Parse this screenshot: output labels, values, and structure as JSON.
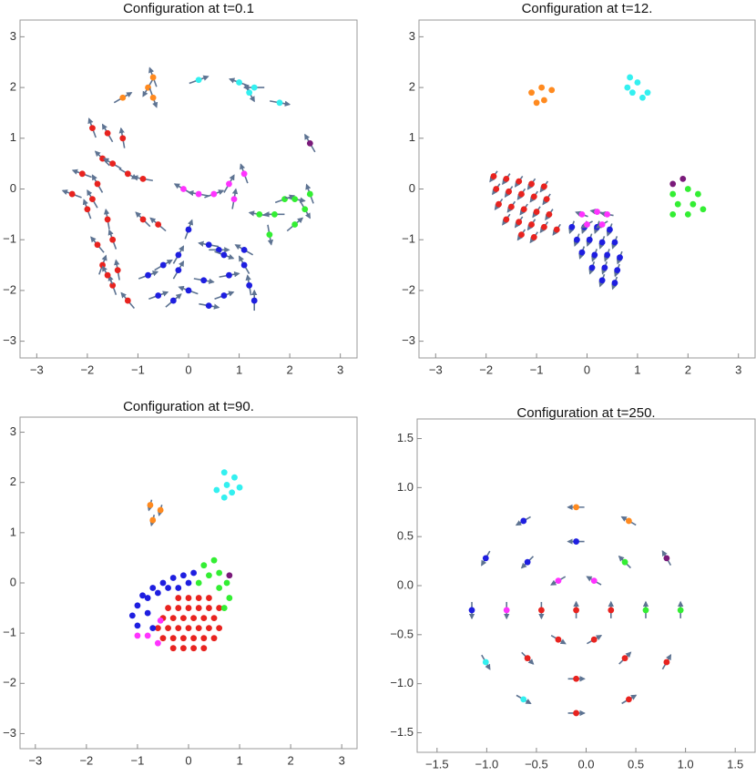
{
  "chart_data": [
    {
      "type": "scatter",
      "title": "Configuration at  t=0.1",
      "xlim": [
        -3.33,
        3.33
      ],
      "ylim": [
        -3.33,
        3.33
      ],
      "xticks": [
        {
          "value": -3,
          "label": "−3"
        },
        {
          "value": -2,
          "label": "−2"
        },
        {
          "value": -1,
          "label": "−1"
        },
        0,
        1,
        2,
        3
      ],
      "yticks": [
        {
          "value": -3,
          "label": "−3"
        },
        {
          "value": -2,
          "label": "−2"
        },
        {
          "value": -1,
          "label": "−1"
        },
        0,
        1,
        2,
        3
      ],
      "series": [
        {
          "color": "#e8231f",
          "x": [
            -1.9,
            -1.6,
            -1.3,
            -1.7,
            -1.5,
            -2.1,
            -1.8,
            -1.2,
            -0.9,
            -2.3,
            -1.9,
            -2.0,
            -1.6,
            -0.9,
            -0.6,
            -1.8,
            -1.5,
            -1.7,
            -1.4,
            -1.5,
            -1.2,
            -1.6
          ],
          "y": [
            1.2,
            1.1,
            1.0,
            0.6,
            0.5,
            0.3,
            0.1,
            0.3,
            0.2,
            -0.1,
            -0.2,
            -0.4,
            -0.6,
            -0.6,
            -0.7,
            -1.1,
            -1.0,
            -1.5,
            -1.6,
            -1.9,
            -2.2,
            -1.7
          ],
          "heading": [
            110,
            120,
            100,
            135,
            150,
            160,
            120,
            -30,
            170,
            160,
            120,
            110,
            100,
            135,
            140,
            130,
            110,
            70,
            100,
            110,
            130,
            120
          ]
        },
        {
          "color": "#1e1ee0",
          "x": [
            0.0,
            -0.2,
            -0.5,
            -0.8,
            0.4,
            0.6,
            0.7,
            1.1,
            0.8,
            0.3,
            0.0,
            -0.3,
            -0.6,
            0.4,
            0.7,
            1.1,
            1.2,
            1.3,
            -0.2
          ],
          "y": [
            -0.8,
            -1.3,
            -1.5,
            -1.7,
            -1.1,
            -1.2,
            -1.3,
            -1.2,
            -1.7,
            -1.8,
            -2.0,
            -2.2,
            -2.1,
            -2.3,
            -2.1,
            -1.5,
            -1.9,
            -2.2,
            -1.6
          ],
          "heading": [
            70,
            60,
            30,
            20,
            170,
            0,
            -20,
            150,
            10,
            -10,
            160,
            40,
            20,
            -10,
            20,
            120,
            100,
            90,
            60
          ]
        },
        {
          "color": "#ff33ff",
          "x": [
            -0.1,
            0.2,
            0.5,
            0.8,
            1.1,
            0.9
          ],
          "y": [
            0.0,
            -0.1,
            -0.1,
            0.1,
            0.3,
            -0.2
          ],
          "heading": [
            150,
            170,
            20,
            60,
            110,
            80
          ]
        },
        {
          "color": "#33ee33",
          "x": [
            1.4,
            1.7,
            1.9,
            2.1,
            2.3,
            2.4,
            1.6,
            2.1
          ],
          "y": [
            -0.5,
            -0.5,
            -0.2,
            -0.2,
            -0.4,
            -0.1,
            -0.9,
            -0.7
          ],
          "heading": [
            170,
            180,
            20,
            -10,
            -60,
            110,
            -80,
            40
          ]
        },
        {
          "color": "#33f0f0",
          "x": [
            0.2,
            1.0,
            1.2,
            1.3,
            1.8
          ],
          "y": [
            2.15,
            2.1,
            1.9,
            2.0,
            1.7
          ],
          "heading": [
            20,
            160,
            -60,
            180,
            -10
          ]
        },
        {
          "color": "#ff8a1f",
          "x": [
            -1.3,
            -0.8,
            -0.7,
            -0.7
          ],
          "y": [
            1.8,
            2.0,
            1.8,
            2.2
          ],
          "heading": [
            30,
            -120,
            -70,
            110
          ]
        },
        {
          "color": "#7a1a7a",
          "x": [
            2.4
          ],
          "y": [
            0.9
          ],
          "heading": [
            120
          ]
        }
      ]
    },
    {
      "type": "scatter",
      "title": "Configuration at  t=12.",
      "xlim": [
        -3.33,
        3.33
      ],
      "ylim": [
        -3.33,
        3.33
      ],
      "xticks": [
        {
          "value": -3,
          "label": "−3"
        },
        {
          "value": -2,
          "label": "−2"
        },
        {
          "value": -1,
          "label": "−1"
        },
        0,
        1,
        2,
        3
      ],
      "yticks": [
        {
          "value": -3,
          "label": "−3"
        },
        {
          "value": -2,
          "label": "−2"
        },
        {
          "value": -1,
          "label": "−1"
        },
        0,
        1,
        2,
        3
      ],
      "series": [
        {
          "color": "#e8231f",
          "x": [
            -1.85,
            -1.6,
            -1.35,
            -1.1,
            -0.85,
            -1.8,
            -1.55,
            -1.3,
            -1.05,
            -0.8,
            -1.75,
            -1.5,
            -1.25,
            -1.0,
            -0.75,
            -1.6,
            -1.35,
            -1.1,
            -0.85,
            -0.6,
            -1.3,
            -1.05
          ],
          "y": [
            0.25,
            0.2,
            0.15,
            0.1,
            0.05,
            0.0,
            -0.05,
            -0.1,
            -0.15,
            -0.2,
            -0.3,
            -0.35,
            -0.4,
            -0.45,
            -0.5,
            -0.6,
            -0.65,
            -0.7,
            -0.75,
            -0.8,
            -0.9,
            -0.95
          ],
          "heading": [
            -125,
            -125,
            -125,
            -125,
            -125,
            -125,
            -125,
            -125,
            -125,
            -125,
            -125,
            -125,
            -125,
            -125,
            -125,
            -125,
            -125,
            -125,
            -125,
            -125,
            -125,
            -125
          ]
        },
        {
          "color": "#1e1ee0",
          "x": [
            -0.3,
            -0.05,
            0.2,
            0.45,
            -0.2,
            0.05,
            0.3,
            0.55,
            -0.1,
            0.15,
            0.4,
            0.65,
            0.1,
            0.35,
            0.6,
            0.3,
            0.55
          ],
          "y": [
            -0.75,
            -0.75,
            -0.75,
            -0.8,
            -1.0,
            -1.0,
            -1.05,
            -1.05,
            -1.25,
            -1.3,
            -1.3,
            -1.35,
            -1.55,
            -1.55,
            -1.6,
            -1.8,
            -1.85
          ],
          "heading": [
            -110,
            -110,
            -110,
            -110,
            -110,
            -110,
            -110,
            -110,
            -110,
            -110,
            -110,
            -110,
            -110,
            -110,
            -110,
            -110,
            -110
          ]
        },
        {
          "color": "#ff33ff",
          "x": [
            -0.1,
            0.2,
            0.4,
            0.0,
            0.3
          ],
          "y": [
            -0.5,
            -0.45,
            -0.5,
            -0.7,
            -0.7
          ],
          "heading": [
            160,
            170,
            170,
            -150,
            -150
          ]
        },
        {
          "color": "#33f0f0",
          "x": [
            0.8,
            1.0,
            1.2,
            0.9,
            1.1,
            0.85
          ],
          "y": [
            2.0,
            2.1,
            1.9,
            1.9,
            1.8,
            2.2
          ]
        },
        {
          "color": "#ff8a1f",
          "x": [
            -1.1,
            -0.9,
            -0.7,
            -1.0,
            -0.85
          ],
          "y": [
            1.9,
            2.0,
            1.95,
            1.7,
            1.75
          ]
        },
        {
          "color": "#33ee33",
          "x": [
            1.7,
            2.0,
            2.2,
            1.8,
            2.1,
            1.7,
            2.0,
            2.3
          ],
          "y": [
            -0.1,
            0.0,
            -0.1,
            -0.3,
            -0.3,
            -0.5,
            -0.5,
            -0.4
          ]
        },
        {
          "color": "#7a1a7a",
          "x": [
            1.7,
            1.9
          ],
          "y": [
            0.1,
            0.2
          ]
        }
      ]
    },
    {
      "type": "scatter",
      "title": "Configuration at  t=90.",
      "xlim": [
        -3.3,
        3.3
      ],
      "ylim": [
        -3.3,
        3.3
      ],
      "xticks": [
        {
          "value": -3,
          "label": "−3"
        },
        {
          "value": -2,
          "label": "−2"
        },
        {
          "value": -1,
          "label": "−1"
        },
        0,
        1,
        2,
        3
      ],
      "yticks": [
        {
          "value": -3,
          "label": "−3"
        },
        {
          "value": -2,
          "label": "−2"
        },
        {
          "value": -1,
          "label": "−1"
        },
        0,
        1,
        2,
        3
      ],
      "series": [
        {
          "color": "#e8231f",
          "x": [
            -0.2,
            0.0,
            0.2,
            0.4,
            -0.4,
            -0.2,
            0,
            0.2,
            0.4,
            0.6,
            -0.5,
            -0.3,
            -0.1,
            0.1,
            0.3,
            0.5,
            -0.6,
            -0.4,
            -0.2,
            0,
            0.2,
            0.4,
            0.6,
            -0.5,
            -0.3,
            -0.1,
            0.1,
            0.3,
            0.5,
            -0.3,
            -0.1,
            0.1,
            0.3
          ],
          "y": [
            -0.3,
            -0.3,
            -0.3,
            -0.3,
            -0.5,
            -0.5,
            -0.5,
            -0.5,
            -0.5,
            -0.5,
            -0.7,
            -0.7,
            -0.7,
            -0.7,
            -0.7,
            -0.7,
            -0.9,
            -0.9,
            -0.9,
            -0.9,
            -0.9,
            -0.9,
            -0.9,
            -1.1,
            -1.1,
            -1.1,
            -1.1,
            -1.1,
            -1.1,
            -1.3,
            -1.3,
            -1.3,
            -1.3
          ]
        },
        {
          "color": "#1e1ee0",
          "x": [
            -0.3,
            -0.1,
            0.1,
            -0.5,
            -0.7,
            -0.9,
            -1.0,
            -1.1,
            -1.0,
            -0.8,
            -0.6,
            -0.4,
            -0.8,
            -0.7,
            -0.2,
            0.0
          ],
          "y": [
            0.1,
            0.15,
            0.2,
            0.0,
            -0.1,
            -0.25,
            -0.45,
            -0.65,
            -0.85,
            -0.3,
            -0.2,
            -0.1,
            -0.6,
            -0.9,
            -0.1,
            0.0
          ]
        },
        {
          "color": "#33ee33",
          "x": [
            0.3,
            0.5,
            0.4,
            0.6,
            0.6,
            0.75,
            0.8,
            0.7,
            0.2
          ],
          "y": [
            0.35,
            0.45,
            0.15,
            0.2,
            -0.1,
            0.0,
            -0.3,
            -0.5,
            0.0
          ]
        },
        {
          "color": "#7a1a7a",
          "x": [
            0.8
          ],
          "y": [
            0.15
          ]
        },
        {
          "color": "#ff33ff",
          "x": [
            -1.0,
            -0.8,
            -0.6,
            -0.55
          ],
          "y": [
            -1.05,
            -1.05,
            -1.2,
            -0.75
          ]
        },
        {
          "color": "#33f0f0",
          "x": [
            0.7,
            0.9,
            0.75,
            0.55,
            0.85,
            0.7,
            1.0
          ],
          "y": [
            2.2,
            2.1,
            1.95,
            1.85,
            1.8,
            1.7,
            1.9
          ]
        },
        {
          "color": "#ff8a1f",
          "x": [
            -0.75,
            -0.55,
            -0.7
          ],
          "y": [
            1.55,
            1.45,
            1.25
          ],
          "heading": [
            -105,
            -105,
            -105
          ]
        }
      ]
    },
    {
      "type": "scatter",
      "title": "Configuration at  t=250.",
      "xlim": [
        -1.7,
        1.7
      ],
      "ylim": [
        -1.7,
        1.7
      ],
      "xticks": [
        {
          "value": -1.5,
          "label": "−1.5"
        },
        {
          "value": -1,
          "label": "−1.0"
        },
        {
          "value": -0.5,
          "label": "−0.5"
        },
        {
          "value": 0,
          "label": "0.0"
        },
        0.5,
        {
          "value": 1,
          "label": "1.0"
        },
        1.5
      ],
      "yticks": [
        {
          "value": -1.5,
          "label": "−1.5"
        },
        {
          "value": -1,
          "label": "−1.0"
        },
        {
          "value": -0.5,
          "label": "−0.5"
        },
        {
          "value": 0,
          "label": "0.0"
        },
        0.5,
        {
          "value": 1,
          "label": "1.0"
        },
        1.5
      ],
      "series": [
        {
          "color": "#33ee33",
          "x": [
            0.95,
            0.6,
            0.39
          ],
          "y": [
            -0.25,
            -0.25,
            0.24
          ],
          "heading": [
            90,
            90,
            135
          ]
        },
        {
          "color": "#7a1a7a",
          "x": [
            0.81
          ],
          "y": [
            0.28
          ],
          "heading": [
            120
          ]
        },
        {
          "color": "#ff8a1f",
          "x": [
            0.43,
            -0.1
          ],
          "y": [
            0.66,
            0.8
          ],
          "heading": [
            150,
            180
          ]
        },
        {
          "color": "#1e1ee0",
          "x": [
            -0.63,
            -1.01,
            -1.15,
            -0.1,
            -0.59
          ],
          "y": [
            0.66,
            0.28,
            -0.25,
            0.45,
            0.24
          ],
          "heading": [
            210,
            240,
            270,
            180,
            225
          ]
        },
        {
          "color": "#33f0f0",
          "x": [
            -1.01,
            -0.63
          ],
          "y": [
            -0.78,
            -1.16
          ],
          "heading": [
            300,
            330
          ]
        },
        {
          "color": "#e8231f",
          "x": [
            -0.1,
            0.43,
            0.81,
            -0.59,
            -0.1,
            0.39,
            0.25,
            -0.28,
            0.08,
            -0.45,
            -0.1
          ],
          "y": [
            -1.3,
            -1.16,
            -0.78,
            -0.74,
            -0.95,
            -0.74,
            -0.25,
            -0.55,
            -0.55,
            -0.25,
            -0.25
          ],
          "heading": [
            0,
            30,
            60,
            315,
            0,
            45,
            90,
            330,
            30,
            270,
            90
          ]
        },
        {
          "color": "#ff33ff",
          "x": [
            -0.8,
            0.08,
            -0.28
          ],
          "y": [
            -0.25,
            0.05,
            0.05
          ],
          "heading": [
            270,
            150,
            210
          ]
        }
      ]
    }
  ]
}
